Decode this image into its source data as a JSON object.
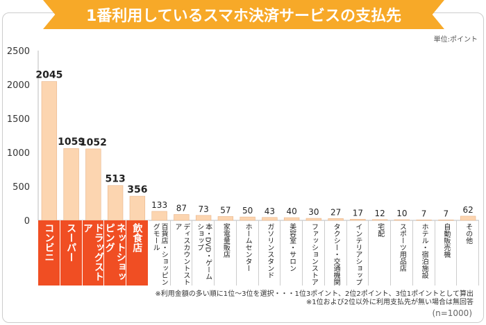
{
  "chart_data": {
    "type": "bar",
    "title": "1番利用しているスマホ決済サービスの支払先",
    "unit": "単位:ポイント",
    "categories": [
      "コンビニ",
      "スーパー",
      "ドラッグストア",
      "ネットショッピング",
      "飲食店",
      "百貨店・ショッピングモール",
      "ディスカウントストア",
      "本・DVD・ゲームショップ",
      "家電量販店",
      "ホームセンター",
      "ガソリンスタンド",
      "美容室・サロン",
      "ファッションストア",
      "タクシー・交通機関",
      "インテリアショップ",
      "宅配",
      "スポーツ用品店",
      "ホテル・宿泊施設",
      "自動販売機",
      "その他"
    ],
    "values": [
      2045,
      1059,
      1052,
      513,
      356,
      133,
      87,
      73,
      57,
      50,
      43,
      40,
      30,
      27,
      17,
      12,
      10,
      7,
      7,
      62
    ],
    "ylim": [
      0,
      2500
    ],
    "yticks": [
      0,
      500,
      1000,
      1500,
      2000,
      2500
    ],
    "highlighted_count": 5,
    "bar_color": "#fcd5b0",
    "highlight_color": "#f04e23",
    "grid": false
  },
  "notes": [
    "※利用金額の多い順に1位～3位を選択・・・1位3ポイント、2位2ポイント、3位1ポイントとして算出",
    "※1位および2位以外に利用支払先が無い場合は無回答"
  ],
  "sample": "(n=1000)"
}
